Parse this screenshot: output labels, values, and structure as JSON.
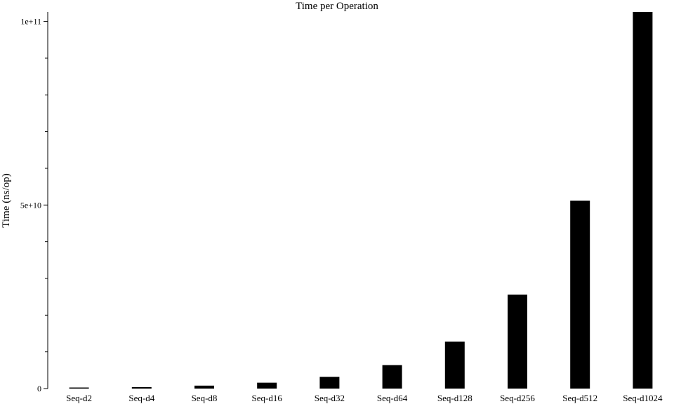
{
  "chart_data": {
    "type": "bar",
    "title": "Time per Operation",
    "xlabel": "",
    "ylabel": "Time (ns/op)",
    "categories": [
      "Seq-d2",
      "Seq-d4",
      "Seq-d8",
      "Seq-d16",
      "Seq-d32",
      "Seq-d64",
      "Seq-d128",
      "Seq-d256",
      "Seq-d512",
      "Seq-d1024"
    ],
    "values": [
      200000000,
      400000000,
      800000000,
      1600000000,
      3200000000,
      6400000000,
      12800000000,
      25600000000,
      51200000000,
      102600000000
    ],
    "ylim": [
      0,
      102600000000
    ],
    "yticks_major": [
      {
        "value": 0,
        "label": "0"
      },
      {
        "value": 50000000000,
        "label": "5e+10"
      },
      {
        "value": 100000000000,
        "label": "1e+11"
      }
    ],
    "yticks_minor": [
      10000000000,
      20000000000,
      30000000000,
      40000000000,
      60000000000,
      70000000000,
      80000000000,
      90000000000
    ],
    "grid": false,
    "legend": "none",
    "bar_color": "#000000"
  }
}
